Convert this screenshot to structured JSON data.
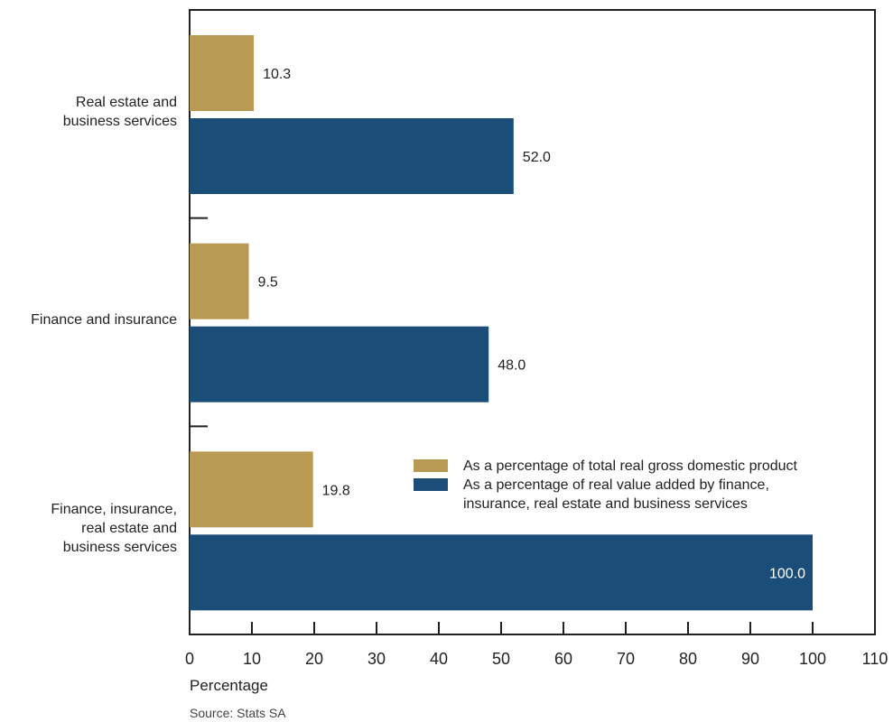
{
  "chart_data": {
    "type": "bar",
    "orientation": "horizontal",
    "categories": [
      "Real estate and\nbusiness services",
      "Finance and insurance",
      "Finance, insurance,\nreal estate and\nbusiness services"
    ],
    "series": [
      {
        "name": "As a percentage of total real gross domestic product",
        "values": [
          10.3,
          9.5,
          19.8
        ],
        "labels": [
          "10.3",
          "9.5",
          "19.8"
        ],
        "color": "#b89a55"
      },
      {
        "name": "As a percentage of real value added by finance,\ninsurance, real estate and business services",
        "values": [
          52.0,
          48.0,
          100.0
        ],
        "labels": [
          "52.0",
          "48.0",
          "100.0"
        ],
        "color": "#1a4d78"
      }
    ],
    "xlabel": "Percentage",
    "xlim": [
      0,
      110
    ],
    "xticks": [
      "0",
      "10",
      "20",
      "30",
      "40",
      "50",
      "60",
      "70",
      "80",
      "90",
      "100",
      "110"
    ],
    "grid": false,
    "legend_position": "inside-right"
  },
  "source": "Source: Stats SA"
}
